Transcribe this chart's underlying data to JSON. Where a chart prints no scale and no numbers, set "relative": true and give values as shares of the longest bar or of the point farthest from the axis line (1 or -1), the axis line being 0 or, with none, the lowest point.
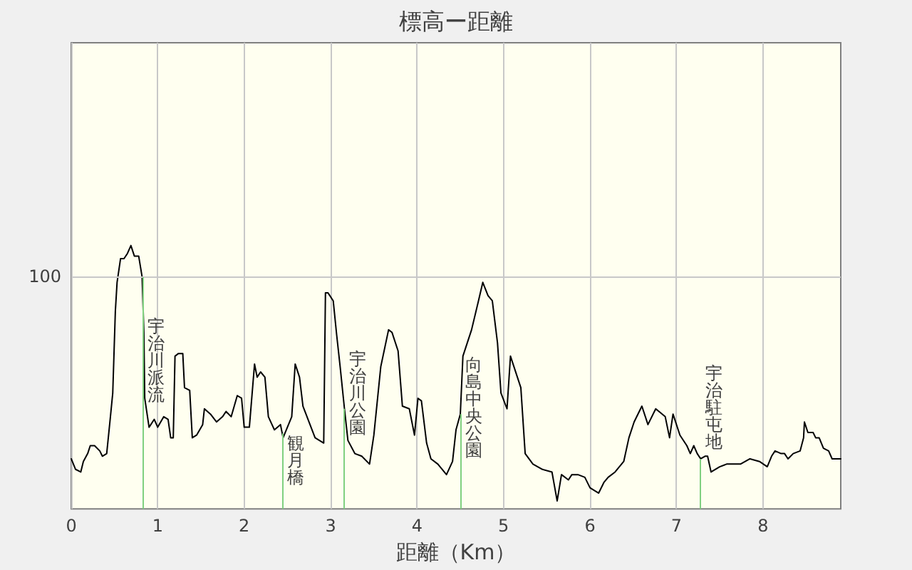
{
  "chart_data": {
    "type": "line",
    "title": "標高ー距離",
    "xlabel": "距離（Km）",
    "relative": true,
    "x": [
      0,
      0.05,
      0.11,
      0.14,
      0.19,
      0.22,
      0.27,
      0.33,
      0.36,
      0.41,
      0.45,
      0.48,
      0.51,
      0.53,
      0.57,
      0.61,
      0.65,
      0.69,
      0.73,
      0.78,
      0.82,
      0.84,
      0.85,
      0.9,
      0.96,
      1.0,
      1.07,
      1.12,
      1.15,
      1.18,
      1.2,
      1.24,
      1.29,
      1.31,
      1.37,
      1.4,
      1.45,
      1.52,
      1.54,
      1.61,
      1.68,
      1.75,
      1.79,
      1.85,
      1.92,
      1.97,
      2.0,
      2.06,
      2.12,
      2.15,
      2.19,
      2.24,
      2.28,
      2.35,
      2.42,
      2.45,
      2.55,
      2.59,
      2.64,
      2.68,
      2.82,
      2.92,
      2.94,
      2.97,
      3.03,
      3.07,
      3.11,
      3.16,
      3.2,
      3.28,
      3.36,
      3.45,
      3.5,
      3.58,
      3.67,
      3.71,
      3.78,
      3.83,
      3.91,
      3.97,
      4.01,
      4.05,
      4.11,
      4.16,
      4.24,
      4.34,
      4.41,
      4.45,
      4.5,
      4.53,
      4.63,
      4.71,
      4.76,
      4.82,
      4.87,
      4.93,
      4.97,
      5.04,
      5.08,
      5.12,
      5.2,
      5.25,
      5.34,
      5.45,
      5.56,
      5.62,
      5.67,
      5.75,
      5.79,
      5.86,
      5.94,
      6.0,
      6.1,
      6.16,
      6.21,
      6.29,
      6.39,
      6.45,
      6.51,
      6.6,
      6.67,
      6.76,
      6.87,
      6.92,
      6.96,
      7.04,
      7.12,
      7.16,
      7.2,
      7.24,
      7.28,
      7.33,
      7.36,
      7.4,
      7.5,
      7.58,
      7.74,
      7.85,
      7.96,
      8.05,
      8.1,
      8.14,
      8.21,
      8.25,
      8.29,
      8.35,
      8.43,
      8.47,
      8.48,
      8.52,
      8.58,
      8.61,
      8.65,
      8.7,
      8.76,
      8.8,
      8.9
    ],
    "values": [
      0.19,
      0.15,
      0.14,
      0.18,
      0.21,
      0.24,
      0.24,
      0.22,
      0.2,
      0.21,
      0.34,
      0.44,
      0.75,
      0.86,
      0.95,
      0.95,
      0.97,
      1,
      0.96,
      0.96,
      0.88,
      0.67,
      0.42,
      0.31,
      0.34,
      0.31,
      0.35,
      0.34,
      0.27,
      0.27,
      0.58,
      0.59,
      0.59,
      0.46,
      0.45,
      0.27,
      0.28,
      0.32,
      0.38,
      0.36,
      0.33,
      0.35,
      0.37,
      0.35,
      0.43,
      0.42,
      0.31,
      0.31,
      0.55,
      0.5,
      0.52,
      0.5,
      0.35,
      0.3,
      0.32,
      0.27,
      0.35,
      0.55,
      0.5,
      0.39,
      0.27,
      0.25,
      0.82,
      0.82,
      0.79,
      0.66,
      0.54,
      0.38,
      0.26,
      0.21,
      0.2,
      0.17,
      0.28,
      0.54,
      0.68,
      0.67,
      0.6,
      0.39,
      0.38,
      0.28,
      0.42,
      0.41,
      0.25,
      0.19,
      0.17,
      0.13,
      0.18,
      0.3,
      0.36,
      0.58,
      0.68,
      0.79,
      0.86,
      0.81,
      0.79,
      0.63,
      0.44,
      0.38,
      0.58,
      0.54,
      0.46,
      0.21,
      0.17,
      0.15,
      0.14,
      0.03,
      0.13,
      0.11,
      0.13,
      0.13,
      0.12,
      0.08,
      0.06,
      0.1,
      0.12,
      0.14,
      0.18,
      0.27,
      0.33,
      0.39,
      0.32,
      0.38,
      0.35,
      0.27,
      0.36,
      0.28,
      0.24,
      0.21,
      0.24,
      0.21,
      0.19,
      0.2,
      0.2,
      0.14,
      0.16,
      0.17,
      0.17,
      0.19,
      0.18,
      0.16,
      0.2,
      0.22,
      0.21,
      0.21,
      0.19,
      0.21,
      0.22,
      0.27,
      0.33,
      0.29,
      0.29,
      0.27,
      0.27,
      0.23,
      0.22,
      0.19,
      0.19
    ],
    "color": "#000000",
    "xlim": [
      0,
      8.9
    ],
    "xticks": [
      0,
      1,
      2,
      3,
      4,
      5,
      6,
      7,
      8
    ],
    "grid": "x",
    "annotations": [
      "100"
    ],
    "ref_lines": [
      {
        "axis": "y",
        "value": 0.88,
        "color": "#c8c8c8"
      },
      {
        "axis": "x",
        "value": 0.82,
        "label": "宇治川派流",
        "color": "#80d080"
      },
      {
        "axis": "x",
        "value": 2.44,
        "label": "観月橋",
        "color": "#80d080"
      },
      {
        "axis": "x",
        "value": 3.16,
        "label": "宇治川公園",
        "color": "#80d080"
      },
      {
        "axis": "x",
        "value": 4.5,
        "label": "向島中央公園",
        "color": "#80d080"
      },
      {
        "axis": "x",
        "value": 7.28,
        "label": "宇治駐屯地",
        "color": "#80d080"
      }
    ]
  }
}
